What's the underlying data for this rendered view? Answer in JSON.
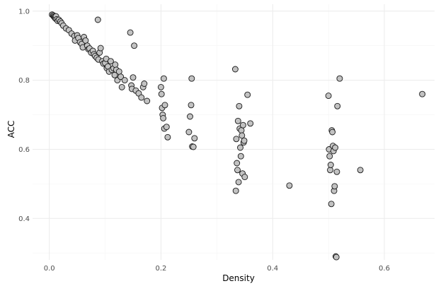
{
  "chart_data": {
    "type": "scatter",
    "xlabel": "Density",
    "ylabel": "ACC",
    "xlim": [
      -0.03,
      0.69
    ],
    "ylim": [
      0.28,
      1.02
    ],
    "x_ticks": [
      {
        "value": 0.0,
        "label": "0.0"
      },
      {
        "value": 0.2,
        "label": "0.2"
      },
      {
        "value": 0.4,
        "label": "0.4"
      },
      {
        "value": 0.6,
        "label": "0.6"
      }
    ],
    "y_ticks": [
      {
        "value": 0.4,
        "label": "0.4"
      },
      {
        "value": 0.6,
        "label": "0.6"
      },
      {
        "value": 0.8,
        "label": "0.8"
      },
      {
        "value": 1.0,
        "label": "1.0"
      }
    ],
    "grid": true,
    "legend": "none",
    "point_fill": "#c2c2c2",
    "point_stroke": "#1a1a1a",
    "points": [
      [
        0.005,
        0.99
      ],
      [
        0.007,
        0.988
      ],
      [
        0.008,
        0.985
      ],
      [
        0.009,
        0.983
      ],
      [
        0.01,
        0.981
      ],
      [
        0.011,
        0.979
      ],
      [
        0.012,
        0.985
      ],
      [
        0.013,
        0.976
      ],
      [
        0.015,
        0.972
      ],
      [
        0.017,
        0.975
      ],
      [
        0.02,
        0.97
      ],
      [
        0.022,
        0.965
      ],
      [
        0.025,
        0.958
      ],
      [
        0.03,
        0.95
      ],
      [
        0.035,
        0.945
      ],
      [
        0.04,
        0.935
      ],
      [
        0.045,
        0.928
      ],
      [
        0.046,
        0.915
      ],
      [
        0.05,
        0.93
      ],
      [
        0.052,
        0.922
      ],
      [
        0.055,
        0.91
      ],
      [
        0.058,
        0.905
      ],
      [
        0.06,
        0.895
      ],
      [
        0.062,
        0.925
      ],
      [
        0.065,
        0.915
      ],
      [
        0.068,
        0.9
      ],
      [
        0.07,
        0.89
      ],
      [
        0.072,
        0.892
      ],
      [
        0.075,
        0.88
      ],
      [
        0.078,
        0.885
      ],
      [
        0.08,
        0.875
      ],
      [
        0.082,
        0.87
      ],
      [
        0.085,
        0.865
      ],
      [
        0.087,
        0.975
      ],
      [
        0.088,
        0.86
      ],
      [
        0.09,
        0.88
      ],
      [
        0.092,
        0.893
      ],
      [
        0.095,
        0.855
      ],
      [
        0.097,
        0.848
      ],
      [
        0.1,
        0.85
      ],
      [
        0.102,
        0.862
      ],
      [
        0.103,
        0.835
      ],
      [
        0.105,
        0.84
      ],
      [
        0.107,
        0.825
      ],
      [
        0.11,
        0.855
      ],
      [
        0.112,
        0.83
      ],
      [
        0.115,
        0.835
      ],
      [
        0.117,
        0.815
      ],
      [
        0.118,
        0.845
      ],
      [
        0.12,
        0.83
      ],
      [
        0.122,
        0.8
      ],
      [
        0.125,
        0.825
      ],
      [
        0.128,
        0.81
      ],
      [
        0.13,
        0.78
      ],
      [
        0.135,
        0.8
      ],
      [
        0.145,
        0.938
      ],
      [
        0.147,
        0.785
      ],
      [
        0.148,
        0.775
      ],
      [
        0.15,
        0.808
      ],
      [
        0.152,
        0.9
      ],
      [
        0.155,
        0.77
      ],
      [
        0.16,
        0.762
      ],
      [
        0.165,
        0.75
      ],
      [
        0.168,
        0.78
      ],
      [
        0.17,
        0.79
      ],
      [
        0.175,
        0.74
      ],
      [
        0.2,
        0.78
      ],
      [
        0.201,
        0.76
      ],
      [
        0.202,
        0.72
      ],
      [
        0.203,
        0.7
      ],
      [
        0.204,
        0.69
      ],
      [
        0.205,
        0.805
      ],
      [
        0.206,
        0.66
      ],
      [
        0.207,
        0.728
      ],
      [
        0.21,
        0.665
      ],
      [
        0.212,
        0.635
      ],
      [
        0.25,
        0.65
      ],
      [
        0.252,
        0.695
      ],
      [
        0.254,
        0.728
      ],
      [
        0.255,
        0.805
      ],
      [
        0.256,
        0.608
      ],
      [
        0.258,
        0.607
      ],
      [
        0.26,
        0.632
      ],
      [
        0.333,
        0.832
      ],
      [
        0.334,
        0.48
      ],
      [
        0.335,
        0.63
      ],
      [
        0.336,
        0.56
      ],
      [
        0.337,
        0.54
      ],
      [
        0.338,
        0.682
      ],
      [
        0.339,
        0.505
      ],
      [
        0.34,
        0.725
      ],
      [
        0.341,
        0.66
      ],
      [
        0.342,
        0.605
      ],
      [
        0.343,
        0.58
      ],
      [
        0.344,
        0.655
      ],
      [
        0.345,
        0.64
      ],
      [
        0.346,
        0.53
      ],
      [
        0.347,
        0.67
      ],
      [
        0.348,
        0.62
      ],
      [
        0.349,
        0.625
      ],
      [
        0.35,
        0.52
      ],
      [
        0.355,
        0.758
      ],
      [
        0.36,
        0.675
      ],
      [
        0.43,
        0.495
      ],
      [
        0.5,
        0.755
      ],
      [
        0.501,
        0.6
      ],
      [
        0.502,
        0.58
      ],
      [
        0.503,
        0.54
      ],
      [
        0.504,
        0.555
      ],
      [
        0.505,
        0.442
      ],
      [
        0.506,
        0.655
      ],
      [
        0.507,
        0.65
      ],
      [
        0.508,
        0.61
      ],
      [
        0.509,
        0.595
      ],
      [
        0.51,
        0.48
      ],
      [
        0.511,
        0.493
      ],
      [
        0.512,
        0.605
      ],
      [
        0.513,
        0.29
      ],
      [
        0.514,
        0.288
      ],
      [
        0.515,
        0.535
      ],
      [
        0.516,
        0.725
      ],
      [
        0.52,
        0.805
      ],
      [
        0.557,
        0.54
      ],
      [
        0.668,
        0.76
      ]
    ]
  }
}
